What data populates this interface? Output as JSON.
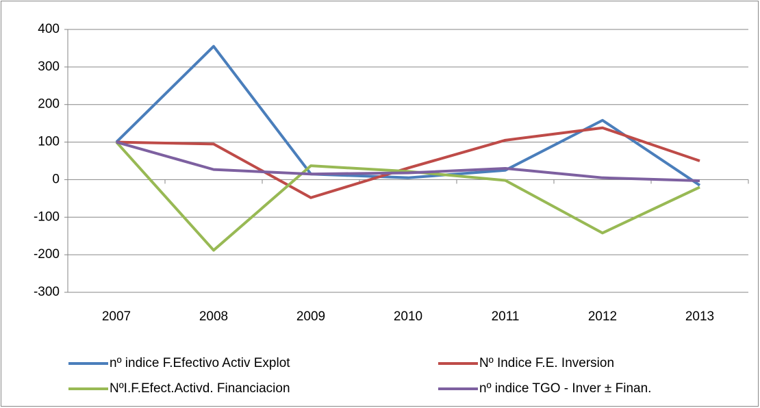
{
  "chart_data": {
    "type": "line",
    "categories": [
      "2007",
      "2008",
      "2009",
      "2010",
      "2011",
      "2012",
      "2013"
    ],
    "series": [
      {
        "name": "nº indice F.Efectivo Activ Explot",
        "color": "#4a7ebb",
        "values": [
          100,
          355,
          15,
          5,
          25,
          158,
          -15
        ]
      },
      {
        "name": "Nº Indice F.E. Inversion",
        "color": "#be4b48",
        "values": [
          100,
          95,
          -48,
          31,
          105,
          138,
          50
        ]
      },
      {
        "name": "NºI.F.Efect.Activd. Financiacion",
        "color": "#98b954",
        "values": [
          100,
          -188,
          37,
          22,
          -2,
          -142,
          -20
        ]
      },
      {
        "name": "nº indice TGO - Inver ± Finan.",
        "color": "#7d60a0",
        "values": [
          100,
          27,
          15,
          18,
          30,
          5,
          -3
        ]
      }
    ],
    "ylim": [
      -300,
      400
    ],
    "yticks": [
      -300,
      -200,
      -100,
      0,
      100,
      200,
      300,
      400
    ],
    "grid": true
  }
}
